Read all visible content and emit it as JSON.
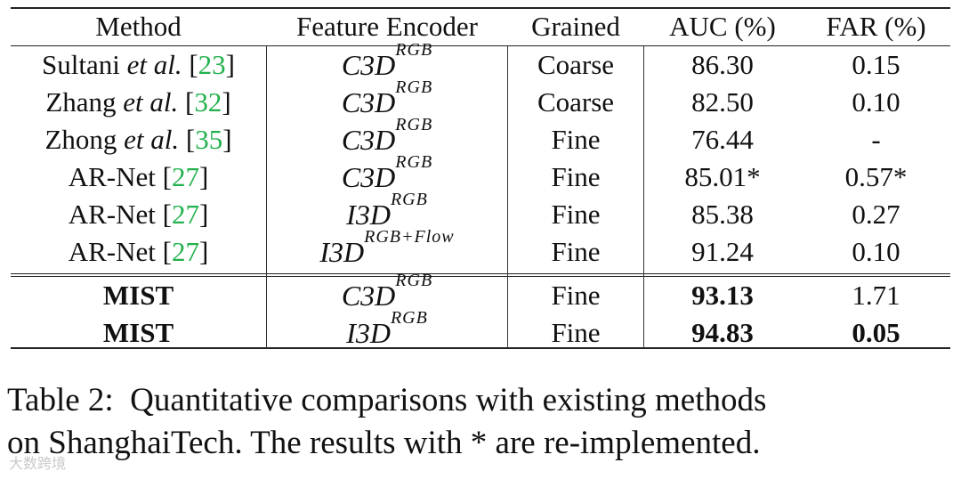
{
  "table": {
    "headers": [
      "Method",
      "Feature Encoder",
      "Grained",
      "AUC (%)",
      "FAR (%)"
    ],
    "rows": [
      {
        "method": "Sultani",
        "etal": "et al.",
        "cite": "23",
        "bold": false,
        "encoder_base": "C3D",
        "encoder_sup": "RGB",
        "grained": "Coarse",
        "auc": "86.30",
        "far": "0.15",
        "auc_bold": false,
        "far_bold": false
      },
      {
        "method": "Zhang",
        "etal": "et al.",
        "cite": "32",
        "bold": false,
        "encoder_base": "C3D",
        "encoder_sup": "RGB",
        "grained": "Coarse",
        "auc": "82.50",
        "far": "0.10",
        "auc_bold": false,
        "far_bold": false
      },
      {
        "method": "Zhong",
        "etal": "et al.",
        "cite": "35",
        "bold": false,
        "encoder_base": "C3D",
        "encoder_sup": "RGB",
        "grained": "Fine",
        "auc": "76.44",
        "far": "-",
        "auc_bold": false,
        "far_bold": false
      },
      {
        "method": "AR-Net",
        "etal": "",
        "cite": "27",
        "bold": false,
        "encoder_base": "C3D",
        "encoder_sup": "RGB",
        "grained": "Fine",
        "auc": "85.01*",
        "far": "0.57*",
        "auc_bold": false,
        "far_bold": false
      },
      {
        "method": "AR-Net",
        "etal": "",
        "cite": "27",
        "bold": false,
        "encoder_base": "I3D",
        "encoder_sup": "RGB",
        "grained": "Fine",
        "auc": "85.38",
        "far": "0.27",
        "auc_bold": false,
        "far_bold": false
      },
      {
        "method": "AR-Net",
        "etal": "",
        "cite": "27",
        "bold": false,
        "encoder_base": "I3D",
        "encoder_sup": "RGB+Flow",
        "grained": "Fine",
        "auc": "91.24",
        "far": "0.10",
        "auc_bold": false,
        "far_bold": false
      },
      {
        "method": "MIST",
        "etal": "",
        "cite": "",
        "bold": true,
        "encoder_base": "C3D",
        "encoder_sup": "RGB",
        "grained": "Fine",
        "auc": "93.13",
        "far": "1.71",
        "auc_bold": true,
        "far_bold": false
      },
      {
        "method": "MIST",
        "etal": "",
        "cite": "",
        "bold": true,
        "encoder_base": "I3D",
        "encoder_sup": "RGB",
        "grained": "Fine",
        "auc": "94.83",
        "far": "0.05",
        "auc_bold": true,
        "far_bold": true
      }
    ]
  },
  "caption": {
    "line1": "Table 2:  Quantitative comparisons with existing methods",
    "line2": "on ShanghaiTech. The results with * are re-implemented."
  },
  "watermark": "大数跨境",
  "colors": {
    "citation": "#22b14c",
    "rule": "#222222"
  }
}
